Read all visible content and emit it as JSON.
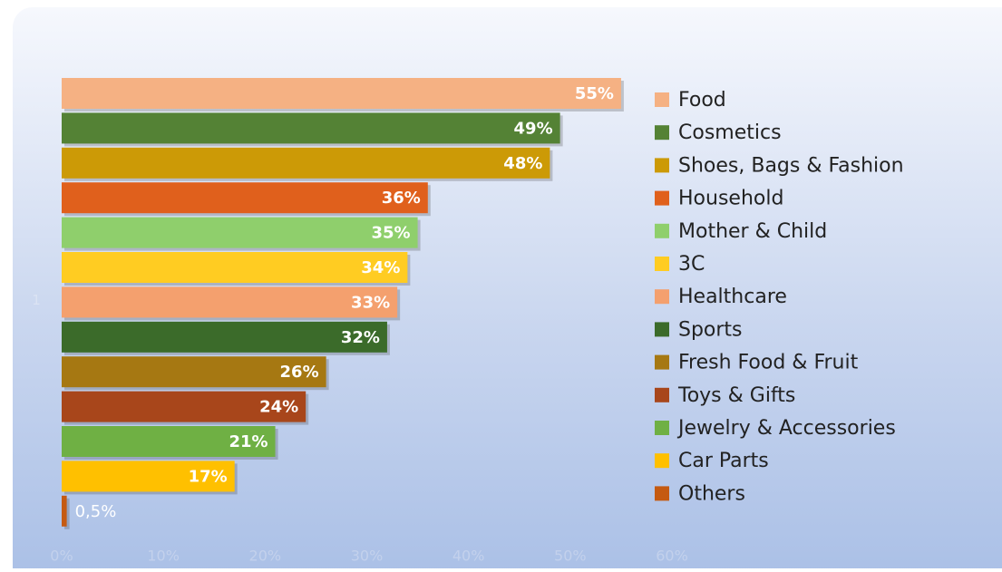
{
  "chart_data": {
    "type": "bar",
    "orientation": "horizontal",
    "categories": [
      "1"
    ],
    "series": [
      {
        "name": "Food",
        "color": "#f5b183",
        "values": [
          55
        ],
        "value_labels": [
          "55%"
        ]
      },
      {
        "name": "Cosmetics",
        "color": "#548235",
        "values": [
          49
        ],
        "value_labels": [
          "49%"
        ]
      },
      {
        "name": "Shoes, Bags & Fashion",
        "color": "#cc9a06",
        "values": [
          48
        ],
        "value_labels": [
          "48%"
        ]
      },
      {
        "name": "Household",
        "color": "#e0601c",
        "values": [
          36
        ],
        "value_labels": [
          "36%"
        ]
      },
      {
        "name": "Mother & Child",
        "color": "#8fcf6c",
        "values": [
          35
        ],
        "value_labels": [
          "35%"
        ]
      },
      {
        "name": "3C",
        "color": "#ffcc22",
        "values": [
          34
        ],
        "value_labels": [
          "34%"
        ]
      },
      {
        "name": "Healthcare",
        "color": "#f4a06e",
        "values": [
          33
        ],
        "value_labels": [
          "33%"
        ]
      },
      {
        "name": "Sports",
        "color": "#3b6b2a",
        "values": [
          32
        ],
        "value_labels": [
          "32%"
        ]
      },
      {
        "name": "Fresh Food & Fruit",
        "color": "#a67812",
        "values": [
          26
        ],
        "value_labels": [
          "26%"
        ]
      },
      {
        "name": "Toys & Gifts",
        "color": "#a8461b",
        "values": [
          24
        ],
        "value_labels": [
          "24%"
        ]
      },
      {
        "name": "Jewelry & Accessories",
        "color": "#6fb044",
        "values": [
          21
        ],
        "value_labels": [
          "21%"
        ]
      },
      {
        "name": "Car Parts",
        "color": "#ffc000",
        "values": [
          17
        ],
        "value_labels": [
          "17%"
        ]
      },
      {
        "name": "Others",
        "color": "#c55a11",
        "values": [
          0.5
        ],
        "value_labels": [
          "0,5%"
        ]
      }
    ],
    "xlim": [
      0,
      60
    ],
    "xticks": [
      {
        "value": 0,
        "label": "0%"
      },
      {
        "value": 10,
        "label": "10%"
      },
      {
        "value": 20,
        "label": "20%"
      },
      {
        "value": 30,
        "label": "30%"
      },
      {
        "value": 40,
        "label": "40%"
      },
      {
        "value": 50,
        "label": "50%"
      },
      {
        "value": 60,
        "label": "60%"
      }
    ],
    "grid": false,
    "legend": "right"
  }
}
